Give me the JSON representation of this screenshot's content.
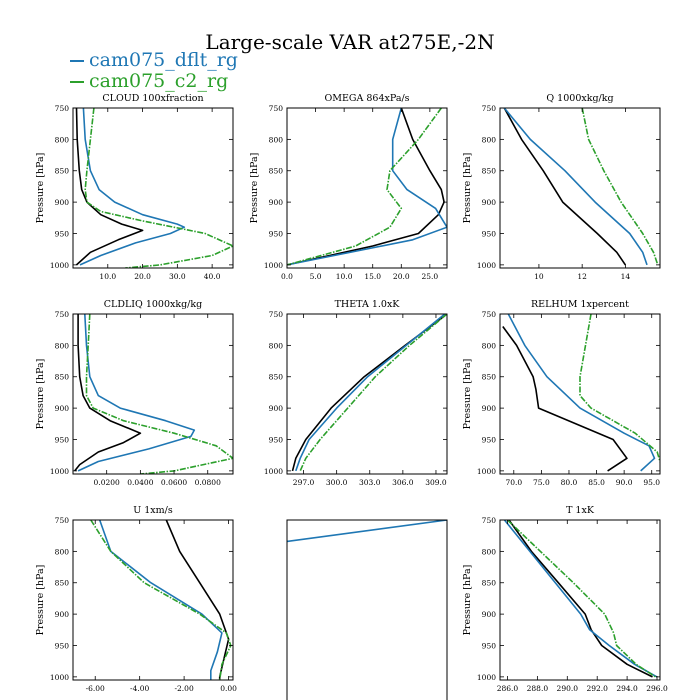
{
  "title": "Large-scale VAR at275E,-2N",
  "legend": [
    {
      "name": "cam075_dflt_rg",
      "color": "#1f77b4"
    },
    {
      "name": "cam075_c2_rg",
      "color": "#2ca02c"
    }
  ],
  "chart_data": [
    {
      "type": "line",
      "title": "CLOUD  100xfraction",
      "ylabel": "Pressure [hPa]",
      "xlim": [
        0,
        46
      ],
      "ylim": [
        1005,
        750
      ],
      "xticks": [
        10,
        20,
        30,
        40
      ],
      "xticklabels": [
        "10.0",
        "20.0",
        "30.0",
        "40.0"
      ],
      "yticks": [
        750,
        800,
        850,
        900,
        950,
        1000
      ],
      "series": [
        {
          "color": "#000000",
          "y": [
            750,
            800,
            850,
            880,
            900,
            920,
            935,
            945,
            960,
            980,
            1000
          ],
          "x": [
            1,
            1.2,
            1.8,
            2.5,
            4,
            8,
            14,
            20,
            13,
            5,
            1
          ]
        },
        {
          "color": "#1f77b4",
          "y": [
            750,
            800,
            850,
            880,
            900,
            920,
            935,
            940,
            950,
            965,
            985,
            1000
          ],
          "x": [
            3,
            3.5,
            5,
            7.5,
            12,
            20,
            30,
            32,
            28,
            18,
            8,
            2
          ]
        },
        {
          "color": "#2ca02c",
          "y": [
            750,
            800,
            850,
            880,
            900,
            915,
            930,
            950,
            970,
            985,
            1000,
            1005
          ],
          "x": [
            6,
            5,
            4,
            3.5,
            4,
            8,
            20,
            38,
            46,
            40,
            25,
            15
          ]
        }
      ]
    },
    {
      "type": "line",
      "title": "OMEGA  864xPa/s",
      "ylabel": "Pressure [hPa]",
      "xlim": [
        0,
        28
      ],
      "ylim": [
        1005,
        750
      ],
      "xticks": [
        0,
        5,
        10,
        15,
        20,
        25
      ],
      "xticklabels": [
        "0.0",
        "5.0",
        "10.0",
        "15.0",
        "20.0",
        "25.0"
      ],
      "yticks": [
        750,
        800,
        850,
        900,
        950,
        1000
      ],
      "series": [
        {
          "color": "#000000",
          "y": [
            750,
            800,
            850,
            880,
            900,
            920,
            950,
            970,
            1000
          ],
          "x": [
            20,
            22,
            25,
            27,
            27.5,
            26.5,
            23,
            15,
            0
          ]
        },
        {
          "color": "#1f77b4",
          "y": [
            750,
            800,
            850,
            880,
            910,
            940,
            960,
            1000
          ],
          "x": [
            20,
            18.5,
            18.5,
            21,
            26,
            28,
            22,
            0
          ]
        },
        {
          "color": "#2ca02c",
          "y": [
            750,
            800,
            850,
            880,
            910,
            940,
            970,
            1000
          ],
          "x": [
            27,
            23,
            18,
            17.5,
            20,
            18,
            12,
            0
          ]
        }
      ]
    },
    {
      "type": "line",
      "title": "Q  1000xkg/kg",
      "ylabel": "Pressure [hPa]",
      "xlim": [
        8.2,
        15.6
      ],
      "ylim": [
        1005,
        750
      ],
      "xticks": [
        10,
        12,
        14
      ],
      "xticklabels": [
        "10",
        "12",
        "14"
      ],
      "yticks": [
        750,
        800,
        850,
        900,
        950,
        1000
      ],
      "series": [
        {
          "color": "#000000",
          "y": [
            750,
            800,
            850,
            900,
            950,
            980,
            1000
          ],
          "x": [
            8.4,
            9.2,
            10.2,
            11.1,
            12.7,
            13.6,
            14.0
          ]
        },
        {
          "color": "#1f77b4",
          "y": [
            750,
            800,
            850,
            900,
            950,
            980,
            1000
          ],
          "x": [
            8.4,
            9.6,
            11.2,
            12.6,
            14.2,
            14.8,
            15.0
          ]
        },
        {
          "color": "#2ca02c",
          "y": [
            750,
            800,
            850,
            900,
            950,
            980,
            1000
          ],
          "x": [
            12.0,
            12.3,
            13.0,
            13.8,
            14.8,
            15.3,
            15.5
          ]
        }
      ]
    },
    {
      "type": "line",
      "title": "CLDLIQ  1000xkg/kg",
      "ylabel": "Pressure [hPa]",
      "xlim": [
        0,
        0.095
      ],
      "ylim": [
        1005,
        750
      ],
      "xticks": [
        0.02,
        0.04,
        0.06,
        0.08
      ],
      "xticklabels": [
        "0.0200",
        "0.0400",
        "0.0600",
        "0.0800"
      ],
      "yticks": [
        750,
        800,
        850,
        900,
        950,
        1000
      ],
      "series": [
        {
          "color": "#000000",
          "y": [
            750,
            800,
            850,
            880,
            900,
            920,
            940,
            955,
            970,
            990,
            1000
          ],
          "x": [
            0.003,
            0.003,
            0.004,
            0.006,
            0.01,
            0.022,
            0.04,
            0.03,
            0.015,
            0.004,
            0.001
          ]
        },
        {
          "color": "#1f77b4",
          "y": [
            750,
            800,
            850,
            880,
            900,
            920,
            935,
            945,
            965,
            985,
            1000
          ],
          "x": [
            0.007,
            0.008,
            0.01,
            0.015,
            0.028,
            0.055,
            0.072,
            0.07,
            0.045,
            0.015,
            0.003
          ]
        },
        {
          "color": "#2ca02c",
          "y": [
            750,
            800,
            850,
            880,
            900,
            920,
            940,
            960,
            980,
            1000,
            1005
          ],
          "x": [
            0.01,
            0.009,
            0.008,
            0.008,
            0.012,
            0.03,
            0.06,
            0.085,
            0.095,
            0.06,
            0.04
          ]
        }
      ]
    },
    {
      "type": "line",
      "title": "THETA  1.0xK",
      "ylabel": "",
      "xlim": [
        295.5,
        310
      ],
      "ylim": [
        1005,
        750
      ],
      "xticks": [
        297,
        300,
        303,
        306,
        309
      ],
      "xticklabels": [
        "297.0",
        "300.0",
        "303.0",
        "306.0",
        "309.0"
      ],
      "yticks": [
        750,
        800,
        850,
        900,
        950,
        1000
      ],
      "series": [
        {
          "color": "#000000",
          "y": [
            750,
            800,
            850,
            900,
            950,
            980,
            1000
          ],
          "x": [
            310,
            306.2,
            302.5,
            299.5,
            297.2,
            296.3,
            296.0
          ]
        },
        {
          "color": "#1f77b4",
          "y": [
            750,
            800,
            850,
            900,
            950,
            980,
            1000
          ],
          "x": [
            309.8,
            306.3,
            302.8,
            300.0,
            297.5,
            296.7,
            296.3
          ]
        },
        {
          "color": "#2ca02c",
          "y": [
            750,
            800,
            850,
            900,
            950,
            980,
            1000
          ],
          "x": [
            310,
            306.6,
            303.5,
            301.0,
            298.5,
            297.2,
            296.7
          ]
        }
      ]
    },
    {
      "type": "line",
      "title": "RELHUM  1xpercent",
      "ylabel": "Pressure [hPa]",
      "xlim": [
        67.5,
        96.5
      ],
      "ylim": [
        1005,
        750
      ],
      "xticks": [
        70,
        75,
        80,
        85,
        90,
        95
      ],
      "xticklabels": [
        "70.0",
        "75.0",
        "80.0",
        "85.0",
        "90.0",
        "95.0"
      ],
      "yticks": [
        750,
        800,
        850,
        900,
        950,
        1000
      ],
      "series": [
        {
          "color": "#000000",
          "y": [
            770,
            800,
            850,
            870,
            900,
            950,
            980,
            1000
          ],
          "x": [
            68,
            70.5,
            73.5,
            74,
            74.5,
            88,
            90.5,
            87
          ]
        },
        {
          "color": "#1f77b4",
          "y": [
            750,
            800,
            850,
            900,
            940,
            960,
            980,
            1000
          ],
          "x": [
            69,
            72,
            76,
            82,
            90,
            94.5,
            95.5,
            93
          ]
        },
        {
          "color": "#2ca02c",
          "y": [
            750,
            800,
            850,
            880,
            900,
            940,
            970,
            1000
          ],
          "x": [
            84,
            83,
            82,
            82,
            84,
            92,
            96,
            97
          ]
        }
      ]
    },
    {
      "type": "line",
      "title": "U  1xm/s",
      "ylabel": "Pressure [hPa]",
      "xlim": [
        -7,
        0.2
      ],
      "ylim": [
        1005,
        750
      ],
      "xticks": [
        -6,
        -4,
        -2,
        0
      ],
      "xticklabels": [
        "-6.00",
        "-4.00",
        "-2.00",
        "0.00"
      ],
      "yticks": [
        750,
        800,
        850,
        900,
        950,
        1000
      ],
      "series": [
        {
          "color": "#000000",
          "y": [
            750,
            800,
            850,
            900,
            940,
            970,
            1000,
            1005
          ],
          "x": [
            -2.8,
            -2.2,
            -1.3,
            -0.4,
            0,
            -0.2,
            -0.4,
            -0.4
          ]
        },
        {
          "color": "#1f77b4",
          "y": [
            750,
            800,
            850,
            900,
            930,
            960,
            990,
            1005
          ],
          "x": [
            -5.8,
            -5.3,
            -3.5,
            -1.2,
            -0.3,
            -0.5,
            -0.8,
            -0.8
          ]
        },
        {
          "color": "#2ca02c",
          "y": [
            750,
            800,
            850,
            900,
            930,
            950,
            980,
            1005
          ],
          "x": [
            -6.2,
            -5.3,
            -3.8,
            -1.3,
            -0.1,
            0.1,
            -0.3,
            -0.4
          ]
        }
      ]
    },
    {
      "type": "line",
      "title": "",
      "ylabel": "",
      "xlim": [
        0,
        1
      ],
      "ylim": [
        1005,
        750
      ],
      "xticks": [],
      "xticklabels": [],
      "yticks": [],
      "series": [
        {
          "color": "#1f77b4",
          "y": [
            778,
            750
          ],
          "x": [
            0,
            1
          ]
        }
      ]
    },
    {
      "type": "line",
      "title": "T  1xK",
      "ylabel": "Pressure [hPa]",
      "xlim": [
        285.5,
        296.2
      ],
      "ylim": [
        1005,
        750
      ],
      "xticks": [
        286,
        288,
        290,
        292,
        294,
        296
      ],
      "xticklabels": [
        "286.0",
        "288.0",
        "290.0",
        "292.0",
        "294.0",
        "296.0"
      ],
      "yticks": [
        750,
        800,
        850,
        900,
        950,
        1000
      ],
      "series": [
        {
          "color": "#000000",
          "y": [
            750,
            800,
            850,
            900,
            925,
            950,
            980,
            1000
          ],
          "x": [
            286.1,
            287.6,
            289.4,
            291.2,
            291.6,
            292.3,
            294.0,
            295.7
          ]
        },
        {
          "color": "#1f77b4",
          "y": [
            750,
            800,
            850,
            900,
            925,
            950,
            980,
            1000
          ],
          "x": [
            285.8,
            287.5,
            289.2,
            290.9,
            291.5,
            292.8,
            294.5,
            296.0
          ]
        },
        {
          "color": "#2ca02c",
          "y": [
            750,
            800,
            850,
            900,
            930,
            950,
            980,
            1000
          ],
          "x": [
            286.0,
            288.2,
            290.4,
            292.5,
            293.1,
            293.3,
            294.6,
            295.9
          ]
        }
      ]
    }
  ]
}
